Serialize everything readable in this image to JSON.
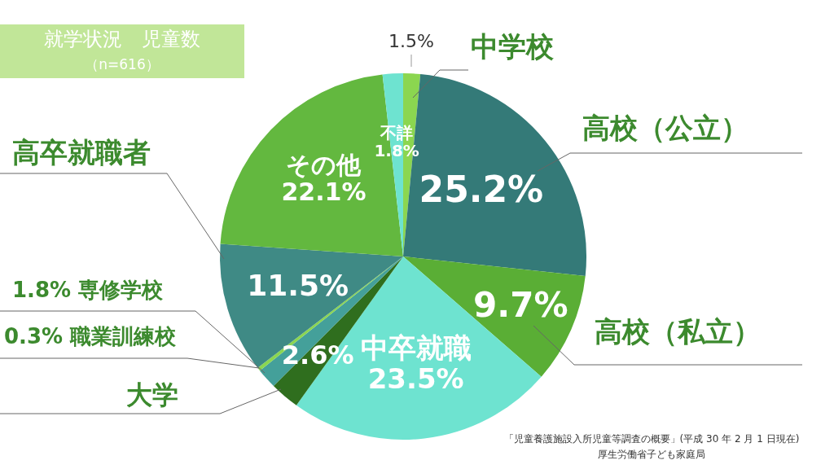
{
  "chart_data": {
    "type": "pie",
    "title": "就学状況　児童数",
    "subtitle": "（n=616）",
    "categories": [
      "中学校",
      "高校（公立）",
      "高校（私立）",
      "中卒就職",
      "大学",
      "専修学校",
      "職業訓練校",
      "高卒就職者",
      "その他",
      "不詳"
    ],
    "values": [
      1.5,
      25.2,
      9.7,
      23.5,
      2.6,
      1.8,
      0.3,
      11.5,
      22.1,
      1.8
    ],
    "value_labels": [
      "1.5%",
      "25.2%",
      "9.7%",
      "23.5%",
      "2.6%",
      "1.8%",
      "0.3%",
      "11.5%",
      "22.1%",
      "1.8%"
    ],
    "colors": [
      "#8bd650",
      "#347a78",
      "#5aae35",
      "#6ee3d0",
      "#2f6e1e",
      "#44a09a",
      "#8bd650",
      "#3f8a85",
      "#63b83f",
      "#6ee3d0"
    ],
    "annotations": [
      "「児童養護施設入所児童等調査の概要」(平成 30 年 2 月 1 日現在)",
      "厚生労働省子ども家庭局"
    ]
  }
}
